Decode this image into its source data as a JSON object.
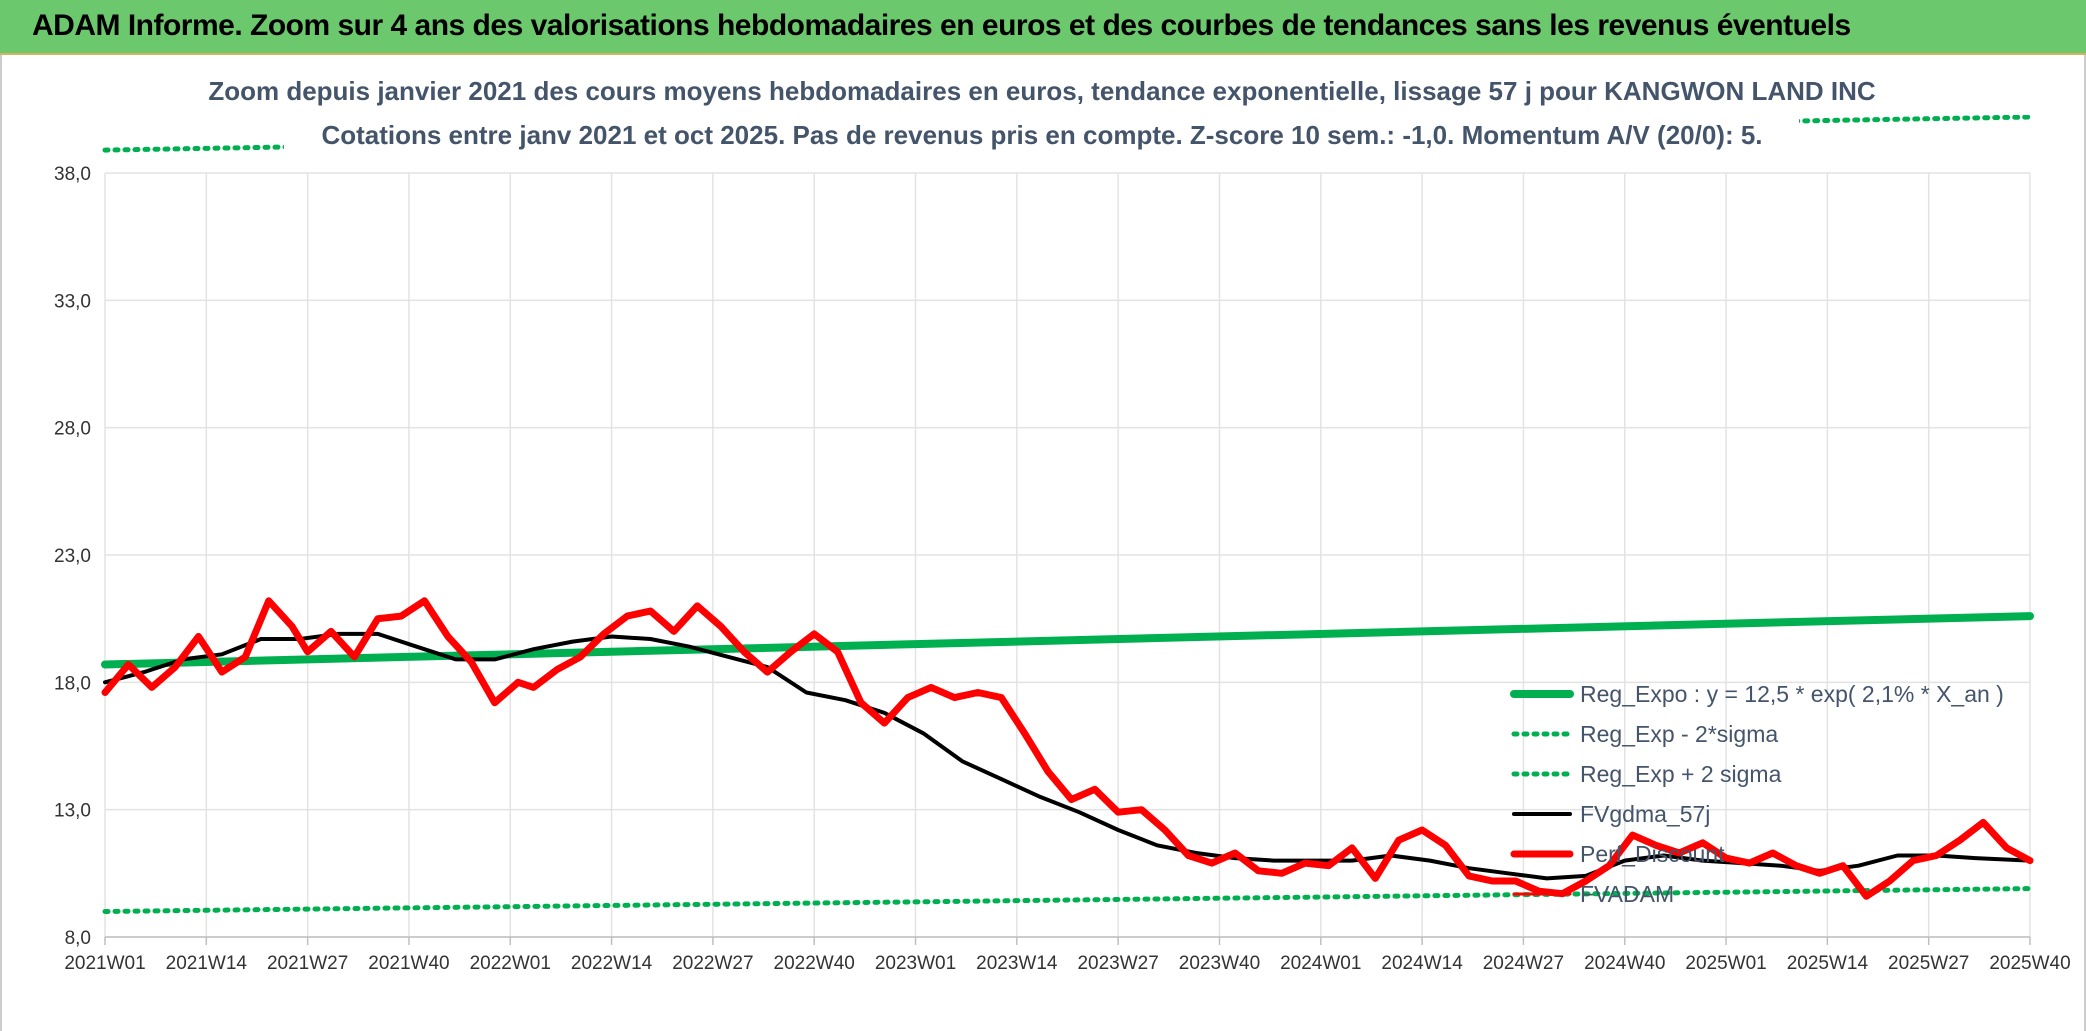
{
  "banner": {
    "title": "ADAM Informe. Zoom sur 4 ans des valorisations hebdomadaires en euros et des courbes de tendances sans les revenus éventuels"
  },
  "chart_data": {
    "type": "line",
    "title_line1": "Zoom depuis janvier 2021 des cours moyens hebdomadaires en euros, tendance exponentielle, lissage 57 j pour KANGWON LAND INC",
    "title_line2": "Cotations entre janv 2021 et oct 2025. Pas de revenus pris en compte. Z-score 10 sem.: -1,0. Momentum A/V (20/0): 5.",
    "ylim": [
      8.0,
      38.0
    ],
    "y_ticks": [
      "8,0",
      "13,0",
      "18,0",
      "23,0",
      "28,0",
      "33,0",
      "38,0"
    ],
    "x_ticks": [
      "2021W01",
      "2021W14",
      "2021W27",
      "2021W40",
      "2022W01",
      "2022W14",
      "2022W27",
      "2022W40",
      "2023W01",
      "2023W14",
      "2023W27",
      "2023W40",
      "2024W01",
      "2024W14",
      "2024W27",
      "2024W40",
      "2025W01",
      "2025W14",
      "2025W27",
      "2025W40"
    ],
    "grid": true,
    "legend_position": "right",
    "colors": {
      "reg_expo": "#00b050",
      "sigma": "#00b050",
      "fvgdma": "#000000",
      "perf": "#ff0000",
      "fvadam": "#ff0000"
    },
    "series": [
      {
        "name": "Reg_Expo : y = 12,5 * exp( 2,1% *  X_an )",
        "style": "solid-green",
        "x": [
          0,
          247
        ],
        "values": [
          18.7,
          20.6
        ]
      },
      {
        "name": "Reg_Exp - 2*sigma",
        "style": "dotted-green",
        "x": [
          0,
          247
        ],
        "values": [
          9.0,
          9.9
        ]
      },
      {
        "name": "Reg_Exp + 2 sigma",
        "style": "dotted-green",
        "x": [
          0,
          247
        ],
        "values": [
          38.9,
          40.2
        ]
      },
      {
        "name": "FVgdma_57j",
        "style": "solid-black",
        "x": [
          0,
          5,
          10,
          15,
          20,
          25,
          30,
          35,
          40,
          45,
          50,
          55,
          60,
          65,
          70,
          75,
          80,
          85,
          90,
          95,
          100,
          105,
          110,
          115,
          120,
          125,
          130,
          135,
          140,
          145,
          150,
          155,
          160,
          165,
          170,
          175,
          180,
          185,
          190,
          195,
          200,
          205,
          210,
          215,
          220,
          225,
          230,
          235,
          240,
          247
        ],
        "values": [
          18.0,
          18.4,
          18.9,
          19.1,
          19.7,
          19.7,
          19.9,
          19.9,
          19.4,
          18.9,
          18.9,
          19.3,
          19.6,
          19.8,
          19.7,
          19.4,
          19.0,
          18.6,
          17.6,
          17.3,
          16.8,
          16.0,
          14.9,
          14.2,
          13.5,
          12.9,
          12.2,
          11.6,
          11.3,
          11.1,
          11.0,
          11.0,
          11.0,
          11.2,
          11.0,
          10.7,
          10.5,
          10.3,
          10.4,
          11.0,
          11.2,
          11.0,
          10.9,
          10.8,
          10.6,
          10.8,
          11.2,
          11.2,
          11.1,
          11.0
        ]
      },
      {
        "name": "Perf_Discount",
        "style": "solid-red",
        "x": [
          0,
          3,
          6,
          9,
          12,
          15,
          18,
          21,
          24,
          26,
          29,
          32,
          35,
          38,
          41,
          44,
          47,
          50,
          53,
          55,
          58,
          61,
          64,
          67,
          70,
          73,
          76,
          79,
          82,
          85,
          88,
          91,
          94,
          97,
          100,
          103,
          106,
          109,
          112,
          115,
          118,
          121,
          124,
          127,
          130,
          133,
          136,
          139,
          142,
          145,
          148,
          151,
          154,
          157,
          160,
          163,
          166,
          169,
          172,
          175,
          178,
          181,
          184,
          187,
          190,
          193,
          196,
          199,
          202,
          205,
          208,
          211,
          214,
          217,
          220,
          223,
          226,
          229,
          232,
          235,
          238,
          241,
          244,
          247
        ],
        "values": [
          17.6,
          18.7,
          17.8,
          18.6,
          19.8,
          18.4,
          19.0,
          21.2,
          20.2,
          19.2,
          20.0,
          19.0,
          20.5,
          20.6,
          21.2,
          19.8,
          18.8,
          17.2,
          18.0,
          17.8,
          18.5,
          19.0,
          19.9,
          20.6,
          20.8,
          20.0,
          21.0,
          20.2,
          19.2,
          18.4,
          19.2,
          19.9,
          19.2,
          17.2,
          16.4,
          17.4,
          17.8,
          17.4,
          17.6,
          17.4,
          16.0,
          14.5,
          13.4,
          13.8,
          12.9,
          13.0,
          12.2,
          11.2,
          10.9,
          11.3,
          10.6,
          10.5,
          10.9,
          10.8,
          11.5,
          10.3,
          11.8,
          12.2,
          11.6,
          10.4,
          10.2,
          10.2,
          9.8,
          9.7,
          10.2,
          10.8,
          12.0,
          11.6,
          11.3,
          11.7,
          11.1,
          10.9,
          11.3,
          10.8,
          10.5,
          10.8,
          9.6,
          10.2,
          11.0,
          11.2,
          11.8,
          12.5,
          11.5,
          11.0
        ]
      },
      {
        "name": "FVADAM",
        "style": "thin-red",
        "x": [
          0,
          247
        ],
        "values": [
          null,
          null
        ]
      }
    ]
  }
}
